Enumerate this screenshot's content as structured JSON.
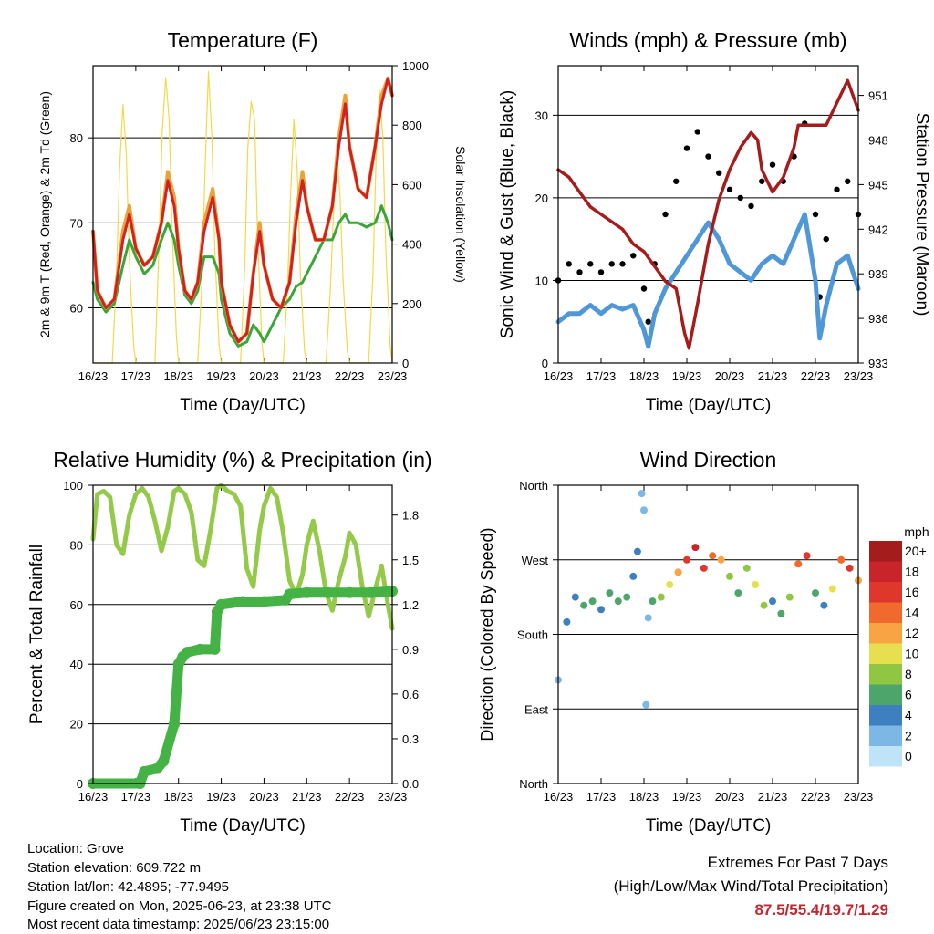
{
  "footer": {
    "location": "Location: Grove",
    "elevation": "Station elevation: 609.722 m",
    "latlon": "Station lat/lon: 42.4895; -77.9495",
    "created": "Figure created on Mon, 2025-06-23, at 23:38 UTC",
    "recent": "Most recent data timestamp: 2025/06/23 23:15:00"
  },
  "extremes": {
    "title": "Extremes For Past 7 Days",
    "subtitle": "(High/Low/Max Wind/Total Precipitation)",
    "values": "87.5/55.4/19.7/1.29"
  },
  "chart_data": [
    {
      "type": "line",
      "title": "Temperature (F)",
      "xlabel": "Time (Day/UTC)",
      "ylabel": "2m & 9m T (Red, Orange) & 2m Td (Green)",
      "y2label": "Solar Insolation (Yellow)",
      "xlim": [
        0,
        7
      ],
      "ylim": [
        53.5,
        88.5
      ],
      "y2lim": [
        0,
        1000
      ],
      "xticks": [
        "16/23",
        "17/23",
        "18/23",
        "19/23",
        "20/23",
        "21/23",
        "22/23",
        "23/23"
      ],
      "yticks": [
        60,
        70,
        80
      ],
      "y2ticks": [
        0,
        200,
        400,
        600,
        800,
        1000
      ],
      "gridlines_y": [
        60,
        70,
        80
      ],
      "colors": {
        "t2m": "#e8a33a",
        "t9m": "#d42020",
        "td": "#3aa63a",
        "solar": "#f4d84a"
      },
      "series": [
        {
          "name": "2m T",
          "color": "#e8a33a",
          "axis": "left",
          "x": [
            0,
            0.1,
            0.3,
            0.5,
            0.7,
            0.85,
            1.0,
            1.2,
            1.4,
            1.6,
            1.75,
            1.9,
            2.0,
            2.15,
            2.3,
            2.45,
            2.6,
            2.8,
            2.95,
            3.0,
            3.2,
            3.4,
            3.6,
            3.75,
            3.9,
            4.0,
            4.2,
            4.4,
            4.6,
            4.75,
            4.9,
            5.0,
            5.2,
            5.4,
            5.6,
            5.75,
            5.9,
            6.0,
            6.2,
            6.4,
            6.6,
            6.75,
            6.9,
            7.0
          ],
          "y": [
            69,
            62,
            60,
            61,
            69,
            72,
            67,
            65,
            66,
            70,
            76,
            73,
            67,
            62,
            61,
            63,
            70,
            74,
            68,
            63,
            58,
            56,
            57,
            64,
            70,
            65,
            61,
            60,
            63,
            71,
            76,
            72,
            68,
            68,
            72,
            80,
            85,
            79,
            74,
            73,
            79,
            85,
            87,
            85
          ]
        },
        {
          "name": "9m T",
          "color": "#d42020",
          "axis": "left",
          "x": [
            0,
            0.1,
            0.3,
            0.5,
            0.7,
            0.85,
            1.0,
            1.2,
            1.4,
            1.6,
            1.75,
            1.9,
            2.0,
            2.15,
            2.3,
            2.45,
            2.6,
            2.8,
            2.95,
            3.0,
            3.2,
            3.4,
            3.6,
            3.75,
            3.9,
            4.0,
            4.2,
            4.4,
            4.6,
            4.75,
            4.9,
            5.0,
            5.2,
            5.4,
            5.6,
            5.75,
            5.9,
            6.0,
            6.2,
            6.4,
            6.6,
            6.75,
            6.9,
            7.0
          ],
          "y": [
            69,
            62,
            60,
            61,
            68,
            71,
            67,
            65,
            66,
            70,
            75,
            72,
            67,
            62,
            61,
            63,
            69,
            73,
            68,
            63,
            58,
            56,
            57,
            64,
            69,
            65,
            61,
            60,
            63,
            70,
            75,
            72,
            68,
            68,
            72,
            79,
            84,
            79,
            74,
            73,
            79,
            84,
            87,
            85
          ]
        },
        {
          "name": "2m Td",
          "color": "#3aa63a",
          "axis": "left",
          "x": [
            0,
            0.1,
            0.3,
            0.5,
            0.7,
            0.85,
            1.0,
            1.2,
            1.4,
            1.6,
            1.75,
            1.9,
            2.0,
            2.15,
            2.3,
            2.45,
            2.6,
            2.8,
            2.95,
            3.0,
            3.2,
            3.4,
            3.6,
            3.75,
            3.9,
            4.0,
            4.2,
            4.4,
            4.6,
            4.75,
            4.9,
            5.0,
            5.2,
            5.4,
            5.6,
            5.75,
            5.9,
            6.0,
            6.2,
            6.4,
            6.6,
            6.75,
            6.9,
            7.0
          ],
          "y": [
            63,
            61,
            59.5,
            60.5,
            65,
            68,
            66,
            64,
            65,
            68,
            70,
            68,
            65,
            61.5,
            60.5,
            62,
            66,
            66,
            64,
            61,
            57,
            55.5,
            56,
            58,
            57,
            56,
            58,
            60,
            61,
            62.5,
            63,
            64,
            66,
            68,
            68,
            70,
            71,
            70,
            70,
            69.5,
            70,
            72,
            70,
            68
          ]
        },
        {
          "name": "Solar Insolation",
          "color": "#f4d84a",
          "axis": "right",
          "x": [
            0,
            0.45,
            0.55,
            0.62,
            0.7,
            0.78,
            0.85,
            0.95,
            1.0,
            1.45,
            1.55,
            1.62,
            1.7,
            1.78,
            1.85,
            1.95,
            2.0,
            2.45,
            2.55,
            2.62,
            2.7,
            2.78,
            2.85,
            2.95,
            3.0,
            3.45,
            3.55,
            3.62,
            3.7,
            3.78,
            3.85,
            3.95,
            4.0,
            4.45,
            4.55,
            4.62,
            4.7,
            4.78,
            4.85,
            4.95,
            5.0,
            5.45,
            5.55,
            5.62,
            5.7,
            5.78,
            5.85,
            5.95,
            6.0,
            6.45,
            6.55,
            6.62,
            6.7,
            6.78,
            6.85,
            6.95,
            7.0
          ],
          "y": [
            0,
            0,
            300,
            650,
            870,
            700,
            350,
            60,
            0,
            0,
            420,
            780,
            960,
            820,
            450,
            90,
            0,
            0,
            280,
            650,
            980,
            760,
            380,
            60,
            0,
            0,
            320,
            720,
            880,
            820,
            430,
            70,
            0,
            0,
            250,
            560,
            820,
            640,
            300,
            40,
            0,
            0,
            240,
            480,
            720,
            560,
            280,
            40,
            0,
            0,
            300,
            680,
            920,
            760,
            380,
            60,
            0
          ]
        }
      ]
    },
    {
      "type": "scatter",
      "title": "Winds (mph) & Pressure (mb)",
      "xlabel": "Time (Day/UTC)",
      "ylabel": "Sonic Wind & Gust (Blue, Black)",
      "y2label": "Station Pressure (Maroon)",
      "xlim": [
        0,
        7
      ],
      "ylim": [
        0,
        36
      ],
      "y2lim": [
        933,
        953
      ],
      "xticks": [
        "16/23",
        "17/23",
        "18/23",
        "19/23",
        "20/23",
        "21/23",
        "22/23",
        "23/23"
      ],
      "yticks": [
        0,
        10,
        20,
        30
      ],
      "y2ticks": [
        933,
        936,
        939,
        942,
        945,
        948,
        951
      ],
      "gridlines_y": [
        10,
        20,
        30
      ],
      "colors": {
        "wind": "#4f97d6",
        "gust": "#000000",
        "pressure": "#a51c1c"
      },
      "series": [
        {
          "name": "Sonic Wind",
          "color": "#4f97d6",
          "axis": "left",
          "x": [
            0,
            0.25,
            0.5,
            0.75,
            1.0,
            1.25,
            1.5,
            1.75,
            2.0,
            2.1,
            2.25,
            2.5,
            2.75,
            3.0,
            3.25,
            3.5,
            3.75,
            4.0,
            4.25,
            4.5,
            4.75,
            5.0,
            5.25,
            5.5,
            5.75,
            6.0,
            6.1,
            6.25,
            6.5,
            6.75,
            7.0
          ],
          "y": [
            5,
            6,
            6,
            7,
            6,
            7,
            6.5,
            7,
            4,
            2,
            6,
            9,
            11,
            13,
            15,
            17,
            15,
            12,
            11,
            10,
            12,
            13,
            12,
            15,
            18,
            10,
            3,
            7,
            12,
            13,
            9
          ]
        },
        {
          "name": "Gust",
          "color": "#000000",
          "axis": "left",
          "x": [
            0,
            0.25,
            0.5,
            0.75,
            1.0,
            1.25,
            1.5,
            1.75,
            2.0,
            2.1,
            2.25,
            2.5,
            2.75,
            3.0,
            3.25,
            3.5,
            3.75,
            4.0,
            4.25,
            4.5,
            4.75,
            5.0,
            5.25,
            5.5,
            5.75,
            6.0,
            6.1,
            6.25,
            6.5,
            6.75,
            7.0
          ],
          "y": [
            10,
            12,
            11,
            12,
            11,
            12,
            12,
            13,
            9,
            5,
            12,
            18,
            22,
            26,
            28,
            25,
            23,
            21,
            20,
            19,
            22,
            24,
            22,
            25,
            29,
            18,
            8,
            15,
            21,
            22,
            18
          ]
        },
        {
          "name": "Station Pressure",
          "color": "#a51c1c",
          "axis": "right",
          "x": [
            0,
            0.25,
            0.5,
            0.75,
            1.0,
            1.25,
            1.5,
            1.75,
            2.0,
            2.25,
            2.5,
            2.75,
            2.95,
            3.05,
            3.25,
            3.5,
            3.75,
            4.0,
            4.25,
            4.5,
            4.65,
            4.75,
            5.0,
            5.25,
            5.5,
            5.6,
            5.75,
            6.0,
            6.25,
            6.5,
            6.75,
            7.0
          ],
          "y": [
            946,
            945.5,
            944.5,
            943.5,
            943,
            942.5,
            942,
            941,
            940.5,
            939.5,
            938.5,
            938,
            935,
            934,
            937,
            941,
            944,
            946,
            947.5,
            948.5,
            948,
            946,
            944.5,
            945.5,
            947.5,
            949,
            949,
            949,
            949,
            950.5,
            952,
            950
          ]
        }
      ]
    },
    {
      "type": "line",
      "title": "Relative Humidity (%) & Precipitation (in)",
      "xlabel": "Time (Day/UTC)",
      "ylabel": "Percent & Total Rainfall",
      "xlim": [
        0,
        7
      ],
      "ylim": [
        0,
        100
      ],
      "y2lim": [
        0,
        2.0
      ],
      "xticks": [
        "16/23",
        "17/23",
        "18/23",
        "19/23",
        "20/23",
        "21/23",
        "22/23",
        "23/23"
      ],
      "yticks": [
        0,
        20,
        40,
        60,
        80,
        100
      ],
      "y2ticks": [
        "0.0",
        "0.3",
        "0.6",
        "0.9",
        "1.2",
        "1.5",
        "1.8"
      ],
      "gridlines_y": [
        20,
        40,
        60,
        80
      ],
      "colors": {
        "rh": "#94c94a",
        "precip": "#44b244"
      },
      "series": [
        {
          "name": "Relative Humidity",
          "color": "#94c94a",
          "axis": "left",
          "x": [
            0,
            0.1,
            0.25,
            0.4,
            0.55,
            0.7,
            0.85,
            1.0,
            1.15,
            1.3,
            1.45,
            1.6,
            1.75,
            1.9,
            2.0,
            2.15,
            2.3,
            2.45,
            2.6,
            2.75,
            2.9,
            3.0,
            3.15,
            3.3,
            3.45,
            3.6,
            3.75,
            3.9,
            4.0,
            4.15,
            4.3,
            4.45,
            4.6,
            4.75,
            4.9,
            5.0,
            5.15,
            5.3,
            5.45,
            5.6,
            5.75,
            5.9,
            6.0,
            6.15,
            6.3,
            6.45,
            6.6,
            6.75,
            6.9,
            7.0
          ],
          "y": [
            82,
            97,
            98,
            96,
            80,
            77,
            90,
            97,
            99,
            96,
            88,
            78,
            86,
            98,
            99,
            97,
            91,
            75,
            73,
            85,
            99,
            100,
            98,
            97,
            93,
            72,
            66,
            85,
            93,
            99,
            96,
            84,
            68,
            63,
            70,
            80,
            88,
            78,
            64,
            58,
            68,
            76,
            84,
            80,
            66,
            56,
            65,
            73,
            60,
            52
          ]
        },
        {
          "name": "Total Rainfall",
          "color": "#44b244",
          "axis": "right",
          "x": [
            0,
            1.1,
            1.2,
            1.5,
            1.65,
            1.9,
            2.0,
            2.1,
            2.2,
            2.5,
            2.85,
            2.9,
            3.0,
            3.5,
            4.0,
            4.5,
            4.6,
            5.0,
            5.5,
            6.0,
            6.5,
            7.0
          ],
          "y": [
            0.0,
            0.0,
            0.08,
            0.1,
            0.15,
            0.4,
            0.8,
            0.85,
            0.88,
            0.9,
            0.9,
            1.15,
            1.2,
            1.22,
            1.22,
            1.23,
            1.27,
            1.28,
            1.28,
            1.28,
            1.28,
            1.29
          ]
        }
      ]
    },
    {
      "type": "scatter",
      "title": "Wind Direction",
      "xlabel": "Time (Day/UTC)",
      "ylabel": "Direction (Colored By Speed)",
      "xlim": [
        0,
        7
      ],
      "ylim": [
        0,
        360
      ],
      "xticks": [
        "16/23",
        "17/23",
        "18/23",
        "19/23",
        "20/23",
        "21/23",
        "22/23",
        "23/23"
      ],
      "yticks": [
        "North",
        "East",
        "South",
        "West",
        "North"
      ],
      "gridlines_y": [
        90,
        180,
        270
      ],
      "colorbar": {
        "title": "mph",
        "labels": [
          "20+",
          "18",
          "16",
          "14",
          "12",
          "10",
          "8",
          "6",
          "4",
          "2",
          "0"
        ],
        "colors": [
          "#a51c1c",
          "#c8242a",
          "#e0372c",
          "#f06a2e",
          "#f9a443",
          "#e6e050",
          "#8fc743",
          "#4ea56c",
          "#3e7fc0",
          "#7cb7e5",
          "#bfe4f7"
        ]
      },
      "x": [
        0,
        0.2,
        0.4,
        0.6,
        0.8,
        1.0,
        1.2,
        1.4,
        1.6,
        1.75,
        1.85,
        1.95,
        2.0,
        2.05,
        2.1,
        2.2,
        2.4,
        2.6,
        2.8,
        3.0,
        3.2,
        3.4,
        3.6,
        3.8,
        4.0,
        4.2,
        4.4,
        4.6,
        4.8,
        5.0,
        5.2,
        5.4,
        5.6,
        5.8,
        6.0,
        6.2,
        6.4,
        6.6,
        6.8,
        7.0
      ],
      "y": [
        125,
        195,
        225,
        215,
        220,
        210,
        230,
        220,
        225,
        250,
        280,
        350,
        330,
        95,
        200,
        220,
        225,
        240,
        255,
        270,
        285,
        260,
        275,
        270,
        250,
        230,
        260,
        240,
        215,
        220,
        205,
        225,
        265,
        275,
        230,
        215,
        235,
        270,
        260,
        245
      ],
      "speed": [
        3,
        4,
        5,
        6,
        6,
        5,
        6,
        7,
        6,
        5,
        4,
        3,
        2,
        3,
        2,
        6,
        8,
        10,
        13,
        16,
        18,
        17,
        15,
        12,
        9,
        6,
        8,
        11,
        8,
        5,
        6,
        8,
        14,
        17,
        6,
        4,
        10,
        14,
        16,
        12
      ]
    }
  ]
}
